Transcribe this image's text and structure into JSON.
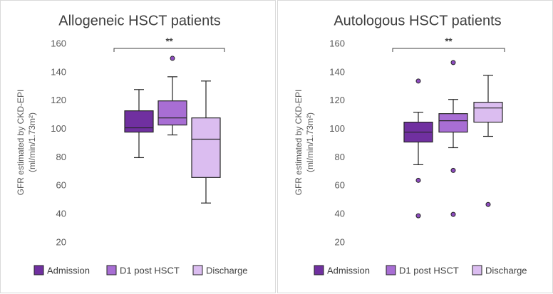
{
  "chart_data": [
    {
      "type": "box",
      "title": "Allogeneic HSCT patients",
      "y_label": [
        "GFR estimated by CKD-EPI",
        "(ml/min/1.73m²)"
      ],
      "ylim": [
        20,
        160
      ],
      "yticks": [
        20,
        40,
        60,
        80,
        100,
        120,
        140,
        160
      ],
      "annotation": "**",
      "series": [
        {
          "name": "Admission",
          "color": "#7030a0",
          "min": 80,
          "q1": 98,
          "median": 101,
          "q3": 113,
          "max": 128,
          "outliers": []
        },
        {
          "name": "D1 post HSCT",
          "color": "#a86ed4",
          "min": 96,
          "q1": 103,
          "median": 108,
          "q3": 120,
          "max": 137,
          "outliers": [
            150
          ]
        },
        {
          "name": "Discharge",
          "color": "#dbbdf0",
          "min": 48,
          "q1": 66,
          "median": 93,
          "q3": 108,
          "max": 134,
          "outliers": []
        }
      ]
    },
    {
      "type": "box",
      "title": "Autologous HSCT patients",
      "y_label": [
        "GFR estimated by CKD-EPI",
        "(ml/min/1.73m²)"
      ],
      "ylim": [
        20,
        160
      ],
      "yticks": [
        20,
        40,
        60,
        80,
        100,
        120,
        140,
        160
      ],
      "annotation": "**",
      "series": [
        {
          "name": "Admission",
          "color": "#7030a0",
          "min": 75,
          "q1": 91,
          "median": 98,
          "q3": 105,
          "max": 112,
          "outliers": [
            134,
            64,
            39
          ]
        },
        {
          "name": "D1 post HSCT",
          "color": "#a86ed4",
          "min": 87,
          "q1": 98,
          "median": 106,
          "q3": 111,
          "max": 121,
          "outliers": [
            147,
            71,
            40
          ]
        },
        {
          "name": "Discharge",
          "color": "#dbbdf0",
          "min": 95,
          "q1": 105,
          "median": 115,
          "q3": 119,
          "max": 138,
          "outliers": [
            47
          ]
        }
      ]
    }
  ]
}
